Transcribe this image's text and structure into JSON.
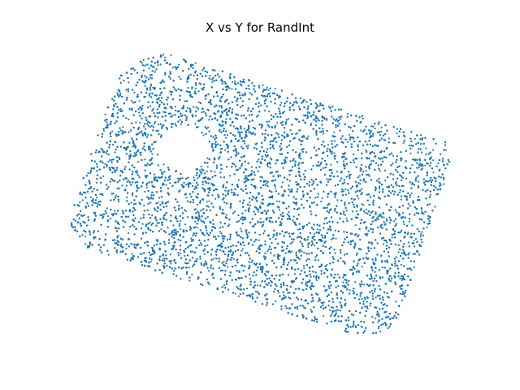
{
  "chart_data": {
    "type": "scatter",
    "title": "X vs Y for RandInt",
    "xlabel": "",
    "ylabel": "",
    "axes_visible": false,
    "grid": false,
    "legend": "none",
    "marker_color": "#1f77b4",
    "series": [
      {
        "shape": "rounded-rectangle",
        "rotation_deg": 17,
        "point_count": 12000,
        "outline": [
          [
            160,
            78
          ],
          [
            205,
            66
          ],
          [
            548,
            175
          ],
          [
            556,
            198
          ],
          [
            487,
            398
          ],
          [
            465,
            413
          ],
          [
            440,
            413
          ],
          [
            104,
            305
          ],
          [
            88,
            285
          ],
          [
            88,
            260
          ],
          [
            143,
            100
          ]
        ],
        "hole": {
          "center": [
            226,
            184
          ],
          "radius_x": 32,
          "radius_y": 27
        }
      }
    ]
  }
}
